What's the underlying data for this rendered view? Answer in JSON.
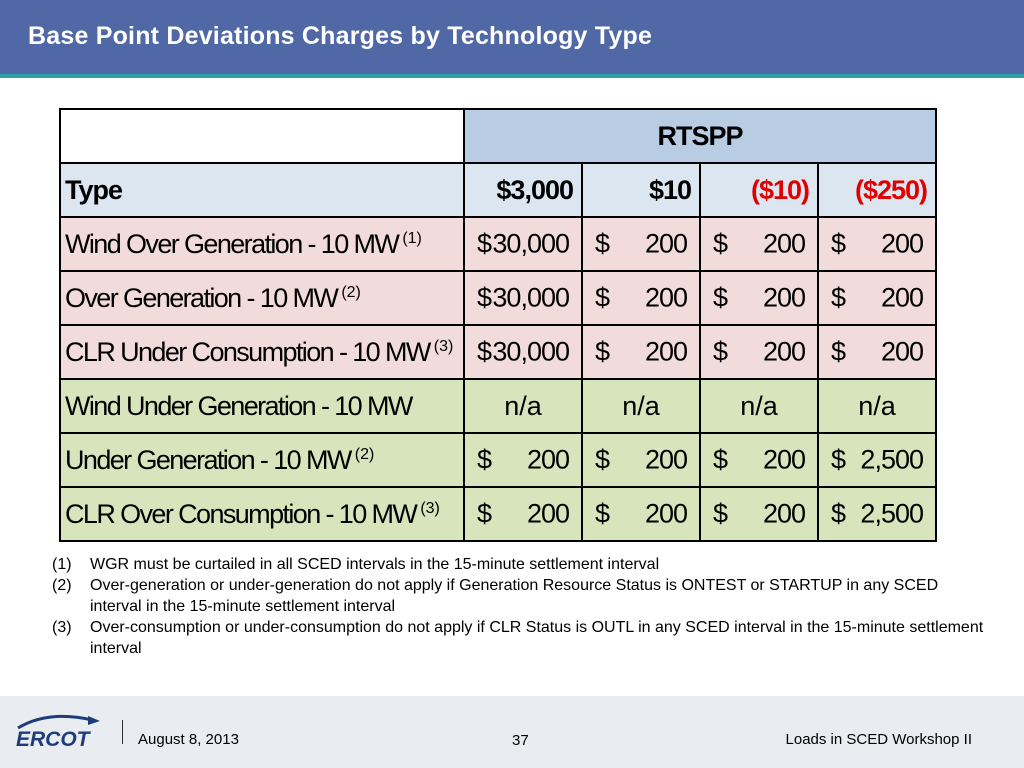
{
  "header": {
    "title": "Base Point Deviations Charges by Technology Type"
  },
  "table": {
    "group_header": "RTSPP",
    "type_label": "Type",
    "price_columns": [
      {
        "label": "$3,000",
        "negative": false
      },
      {
        "label": "$10",
        "negative": false
      },
      {
        "label": "($10)",
        "negative": true
      },
      {
        "label": "($250)",
        "negative": true
      }
    ],
    "rows": [
      {
        "label": "Wind Over Generation - 10 MW",
        "note": "(1)",
        "group": "over",
        "cells": [
          {
            "cur": "$",
            "amt": "30,000"
          },
          {
            "cur": "$",
            "amt": "200"
          },
          {
            "cur": "$",
            "amt": "200"
          },
          {
            "cur": "$",
            "amt": "200"
          }
        ]
      },
      {
        "label": "Over Generation - 10 MW",
        "note": "(2)",
        "group": "over",
        "cells": [
          {
            "cur": "$",
            "amt": "30,000"
          },
          {
            "cur": "$",
            "amt": "200"
          },
          {
            "cur": "$",
            "amt": "200"
          },
          {
            "cur": "$",
            "amt": "200"
          }
        ]
      },
      {
        "label": "CLR Under Consumption - 10 MW",
        "note": "(3)",
        "group": "over",
        "cells": [
          {
            "cur": "$",
            "amt": "30,000"
          },
          {
            "cur": "$",
            "amt": "200"
          },
          {
            "cur": "$",
            "amt": "200"
          },
          {
            "cur": "$",
            "amt": "200"
          }
        ]
      },
      {
        "label": "Wind Under Generation - 10 MW",
        "note": "",
        "group": "under",
        "cells": [
          {
            "na": "n/a"
          },
          {
            "na": "n/a"
          },
          {
            "na": "n/a"
          },
          {
            "na": "n/a"
          }
        ]
      },
      {
        "label": "Under Generation - 10 MW",
        "note": "(2)",
        "group": "under",
        "cells": [
          {
            "cur": "$",
            "amt": "200"
          },
          {
            "cur": "$",
            "amt": "200"
          },
          {
            "cur": "$",
            "amt": "200"
          },
          {
            "cur": "$",
            "amt": "2,500"
          }
        ]
      },
      {
        "label": "CLR Over Consumption - 10 MW",
        "note": "(3)",
        "group": "under",
        "cells": [
          {
            "cur": "$",
            "amt": "200"
          },
          {
            "cur": "$",
            "amt": "200"
          },
          {
            "cur": "$",
            "amt": "200"
          },
          {
            "cur": "$",
            "amt": "2,500"
          }
        ]
      }
    ]
  },
  "notes": [
    {
      "num": "(1)",
      "text": "WGR must be curtailed in all SCED intervals in the 15-minute settlement interval"
    },
    {
      "num": "(2)",
      "text": "Over-generation or under-generation do not apply if Generation Resource Status is ONTEST or STARTUP in any SCED interval in the 15-minute settlement interval"
    },
    {
      "num": "(3)",
      "text": "Over-consumption or under-consumption do not apply if CLR Status is OUTL in any SCED interval in the 15-minute settlement interval"
    }
  ],
  "footer": {
    "logo_text": "ERCOT",
    "date": "August 8, 2013",
    "page": "37",
    "event": "Loads in SCED Workshop II"
  },
  "colors": {
    "title_bar": "#5168a7",
    "accent": "#2f9fa8",
    "over_rows": "#f2dcdb",
    "under_rows": "#d8e4bc",
    "header_row": "#dce6f1",
    "rtspp_header": "#b8cce4",
    "negative_price": "#e00000",
    "logo": "#1d3d7a"
  },
  "icons": {
    "logo": "ercot-logo"
  }
}
